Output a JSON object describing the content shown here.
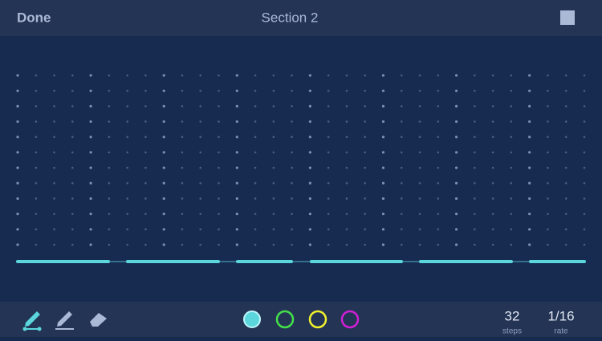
{
  "header": {
    "done": "Done",
    "title": "Section 2"
  },
  "footer": {
    "steps": {
      "value": "32",
      "label": "steps"
    },
    "rate": {
      "value": "1/16",
      "label": "rate"
    }
  }
}
